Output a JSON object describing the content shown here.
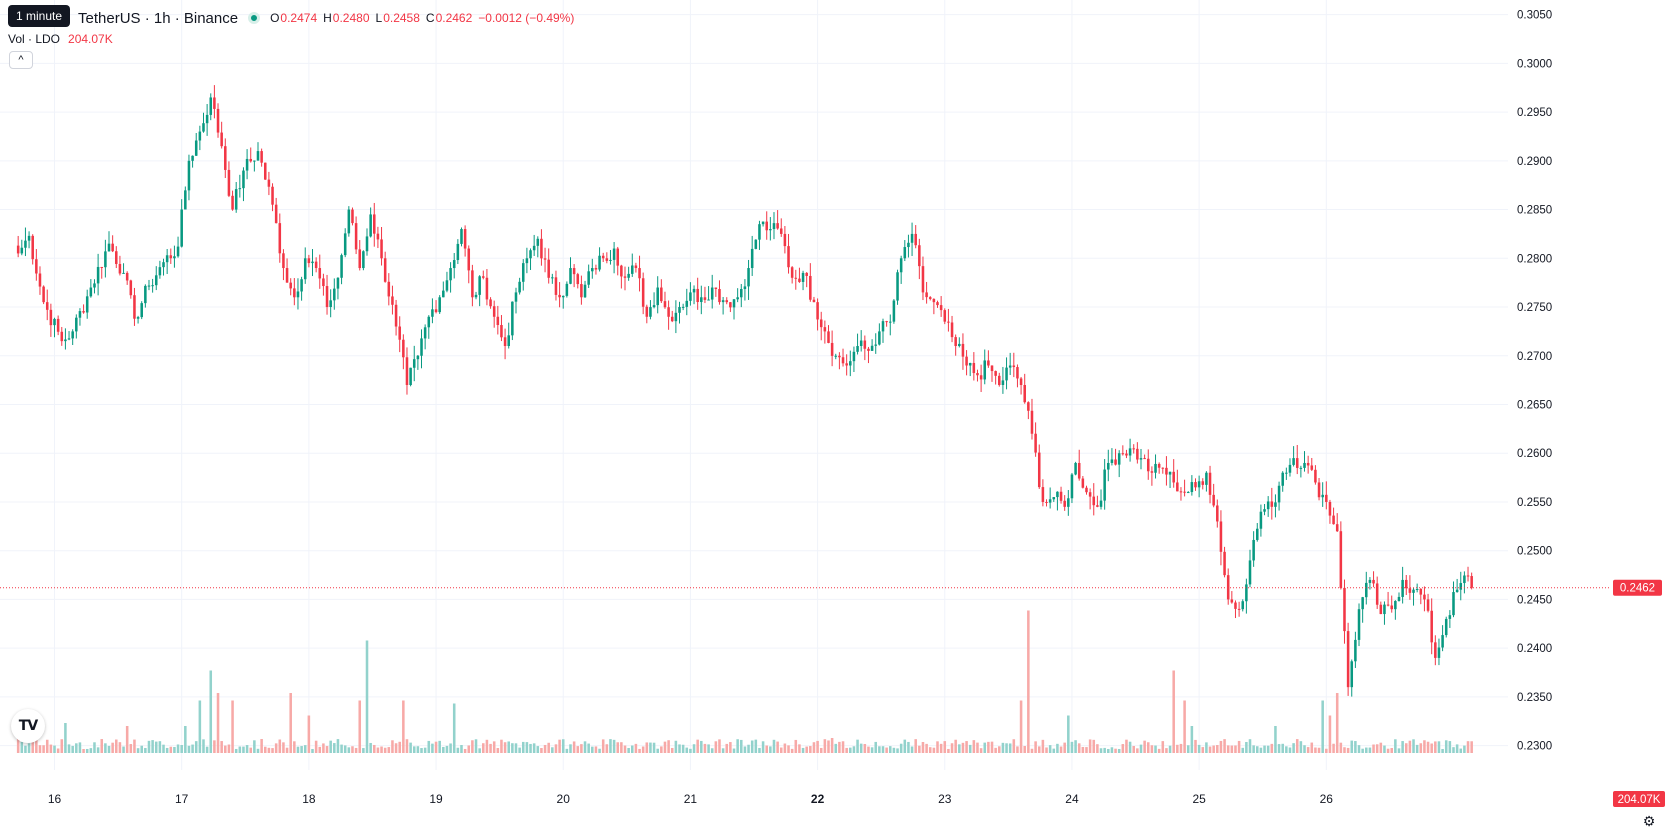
{
  "tooltip": "1 minute",
  "header": {
    "symbol": "TetherUS · 1h · Binance",
    "open_label": "O",
    "open": "0.2474",
    "high_label": "H",
    "high": "0.2480",
    "low_label": "L",
    "low": "0.2458",
    "close_label": "C",
    "close": "0.2462",
    "change": "−0.0012 (−0.49%)"
  },
  "volume": {
    "label": "Vol · LDO",
    "value": "204.07K"
  },
  "logo": "TV",
  "last_price_label": "0.2462",
  "last_volume_label": "204.07K",
  "colors": {
    "up": "#089981",
    "down": "#f23645",
    "up_vol": "#92d2cc",
    "down_vol": "#f7a9a7"
  },
  "chart_data": {
    "type": "candlestick",
    "interval": "1h",
    "y_ticks": [
      "0.3050",
      "0.3000",
      "0.2950",
      "0.2900",
      "0.2850",
      "0.2800",
      "0.2750",
      "0.2700",
      "0.2650",
      "0.2600",
      "0.2550",
      "0.2500",
      "0.2450",
      "0.2400",
      "0.2350",
      "0.2300"
    ],
    "ylim": [
      0.2275,
      0.3065
    ],
    "x_ticks": [
      "16",
      "17",
      "18",
      "19",
      "20",
      "21",
      "22",
      "23",
      "24",
      "25",
      "26"
    ],
    "x_tick_hours": [
      10,
      45,
      80,
      115,
      150,
      185,
      220,
      255,
      290,
      325,
      360
    ],
    "xlim": [
      -5,
      410
    ],
    "last_price": 0.2462,
    "anchors_close": [
      [
        0,
        0.2805
      ],
      [
        3,
        0.2823
      ],
      [
        7,
        0.2755
      ],
      [
        12,
        0.2715
      ],
      [
        15,
        0.2725
      ],
      [
        20,
        0.277
      ],
      [
        25,
        0.2815
      ],
      [
        29,
        0.2785
      ],
      [
        32,
        0.2738
      ],
      [
        36,
        0.2772
      ],
      [
        40,
        0.2796
      ],
      [
        44,
        0.2812
      ],
      [
        47,
        0.29
      ],
      [
        50,
        0.293
      ],
      [
        53,
        0.2965
      ],
      [
        56,
        0.2915
      ],
      [
        59,
        0.285
      ],
      [
        62,
        0.289
      ],
      [
        66,
        0.291
      ],
      [
        70,
        0.2855
      ],
      [
        73,
        0.279
      ],
      [
        76,
        0.276
      ],
      [
        79,
        0.28
      ],
      [
        82,
        0.279
      ],
      [
        85,
        0.275
      ],
      [
        88,
        0.278
      ],
      [
        91,
        0.285
      ],
      [
        94,
        0.279
      ],
      [
        97,
        0.2845
      ],
      [
        100,
        0.28
      ],
      [
        104,
        0.273
      ],
      [
        107,
        0.267
      ],
      [
        110,
        0.27
      ],
      [
        113,
        0.274
      ],
      [
        116,
        0.276
      ],
      [
        119,
        0.279
      ],
      [
        122,
        0.283
      ],
      [
        125,
        0.276
      ],
      [
        128,
        0.278
      ],
      [
        131,
        0.274
      ],
      [
        134,
        0.271
      ],
      [
        137,
        0.2765
      ],
      [
        140,
        0.28
      ],
      [
        143,
        0.282
      ],
      [
        146,
        0.278
      ],
      [
        149,
        0.276
      ],
      [
        152,
        0.279
      ],
      [
        155,
        0.276
      ],
      [
        158,
        0.279
      ],
      [
        161,
        0.28
      ],
      [
        164,
        0.281
      ],
      [
        167,
        0.278
      ],
      [
        170,
        0.279
      ],
      [
        173,
        0.274
      ],
      [
        176,
        0.277
      ],
      [
        179,
        0.274
      ],
      [
        182,
        0.275
      ],
      [
        185,
        0.2765
      ],
      [
        188,
        0.276
      ],
      [
        191,
        0.277
      ],
      [
        195,
        0.2755
      ],
      [
        198,
        0.276
      ],
      [
        201,
        0.279
      ],
      [
        204,
        0.2835
      ],
      [
        207,
        0.283
      ],
      [
        210,
        0.2825
      ],
      [
        213,
        0.278
      ],
      [
        216,
        0.2785
      ],
      [
        219,
        0.2755
      ],
      [
        222,
        0.2725
      ],
      [
        225,
        0.27
      ],
      [
        228,
        0.269
      ],
      [
        231,
        0.271
      ],
      [
        234,
        0.2705
      ],
      [
        237,
        0.2725
      ],
      [
        240,
        0.2735
      ],
      [
        243,
        0.28
      ],
      [
        246,
        0.2825
      ],
      [
        249,
        0.2765
      ],
      [
        252,
        0.2755
      ],
      [
        255,
        0.2735
      ],
      [
        258,
        0.271
      ],
      [
        261,
        0.269
      ],
      [
        264,
        0.268
      ],
      [
        267,
        0.269
      ],
      [
        270,
        0.267
      ],
      [
        273,
        0.269
      ],
      [
        276,
        0.267
      ],
      [
        279,
        0.262
      ],
      [
        282,
        0.255
      ],
      [
        285,
        0.2555
      ],
      [
        288,
        0.2545
      ],
      [
        291,
        0.259
      ],
      [
        294,
        0.256
      ],
      [
        297,
        0.2545
      ],
      [
        300,
        0.259
      ],
      [
        303,
        0.26
      ],
      [
        306,
        0.2605
      ],
      [
        309,
        0.2595
      ],
      [
        312,
        0.258
      ],
      [
        315,
        0.2585
      ],
      [
        318,
        0.257
      ],
      [
        321,
        0.256
      ],
      [
        324,
        0.2565
      ],
      [
        327,
        0.258
      ],
      [
        330,
        0.253
      ],
      [
        333,
        0.245
      ],
      [
        336,
        0.244
      ],
      [
        339,
        0.249
      ],
      [
        342,
        0.254
      ],
      [
        345,
        0.2545
      ],
      [
        348,
        0.258
      ],
      [
        351,
        0.2595
      ],
      [
        354,
        0.259
      ],
      [
        357,
        0.257
      ],
      [
        360,
        0.255
      ],
      [
        363,
        0.252
      ],
      [
        366,
        0.236
      ],
      [
        369,
        0.244
      ],
      [
        372,
        0.247
      ],
      [
        375,
        0.2435
      ],
      [
        378,
        0.244
      ],
      [
        381,
        0.247
      ],
      [
        384,
        0.246
      ],
      [
        387,
        0.245
      ],
      [
        390,
        0.239
      ],
      [
        393,
        0.243
      ],
      [
        396,
        0.246
      ],
      [
        399,
        0.2474
      ],
      [
        400,
        0.2462
      ]
    ],
    "volume_spikes": [
      [
        0,
        25
      ],
      [
        5,
        12
      ],
      [
        13,
        20
      ],
      [
        30,
        18
      ],
      [
        46,
        18
      ],
      [
        50,
        35
      ],
      [
        53,
        55
      ],
      [
        55,
        40
      ],
      [
        59,
        35
      ],
      [
        75,
        40
      ],
      [
        80,
        25
      ],
      [
        94,
        35
      ],
      [
        96,
        75
      ],
      [
        106,
        35
      ],
      [
        120,
        33
      ],
      [
        224,
        10
      ],
      [
        276,
        35
      ],
      [
        278,
        95
      ],
      [
        289,
        25
      ],
      [
        318,
        55
      ],
      [
        321,
        35
      ],
      [
        323,
        18
      ],
      [
        346,
        18
      ],
      [
        359,
        35
      ],
      [
        361,
        25
      ],
      [
        363,
        40
      ]
    ]
  }
}
